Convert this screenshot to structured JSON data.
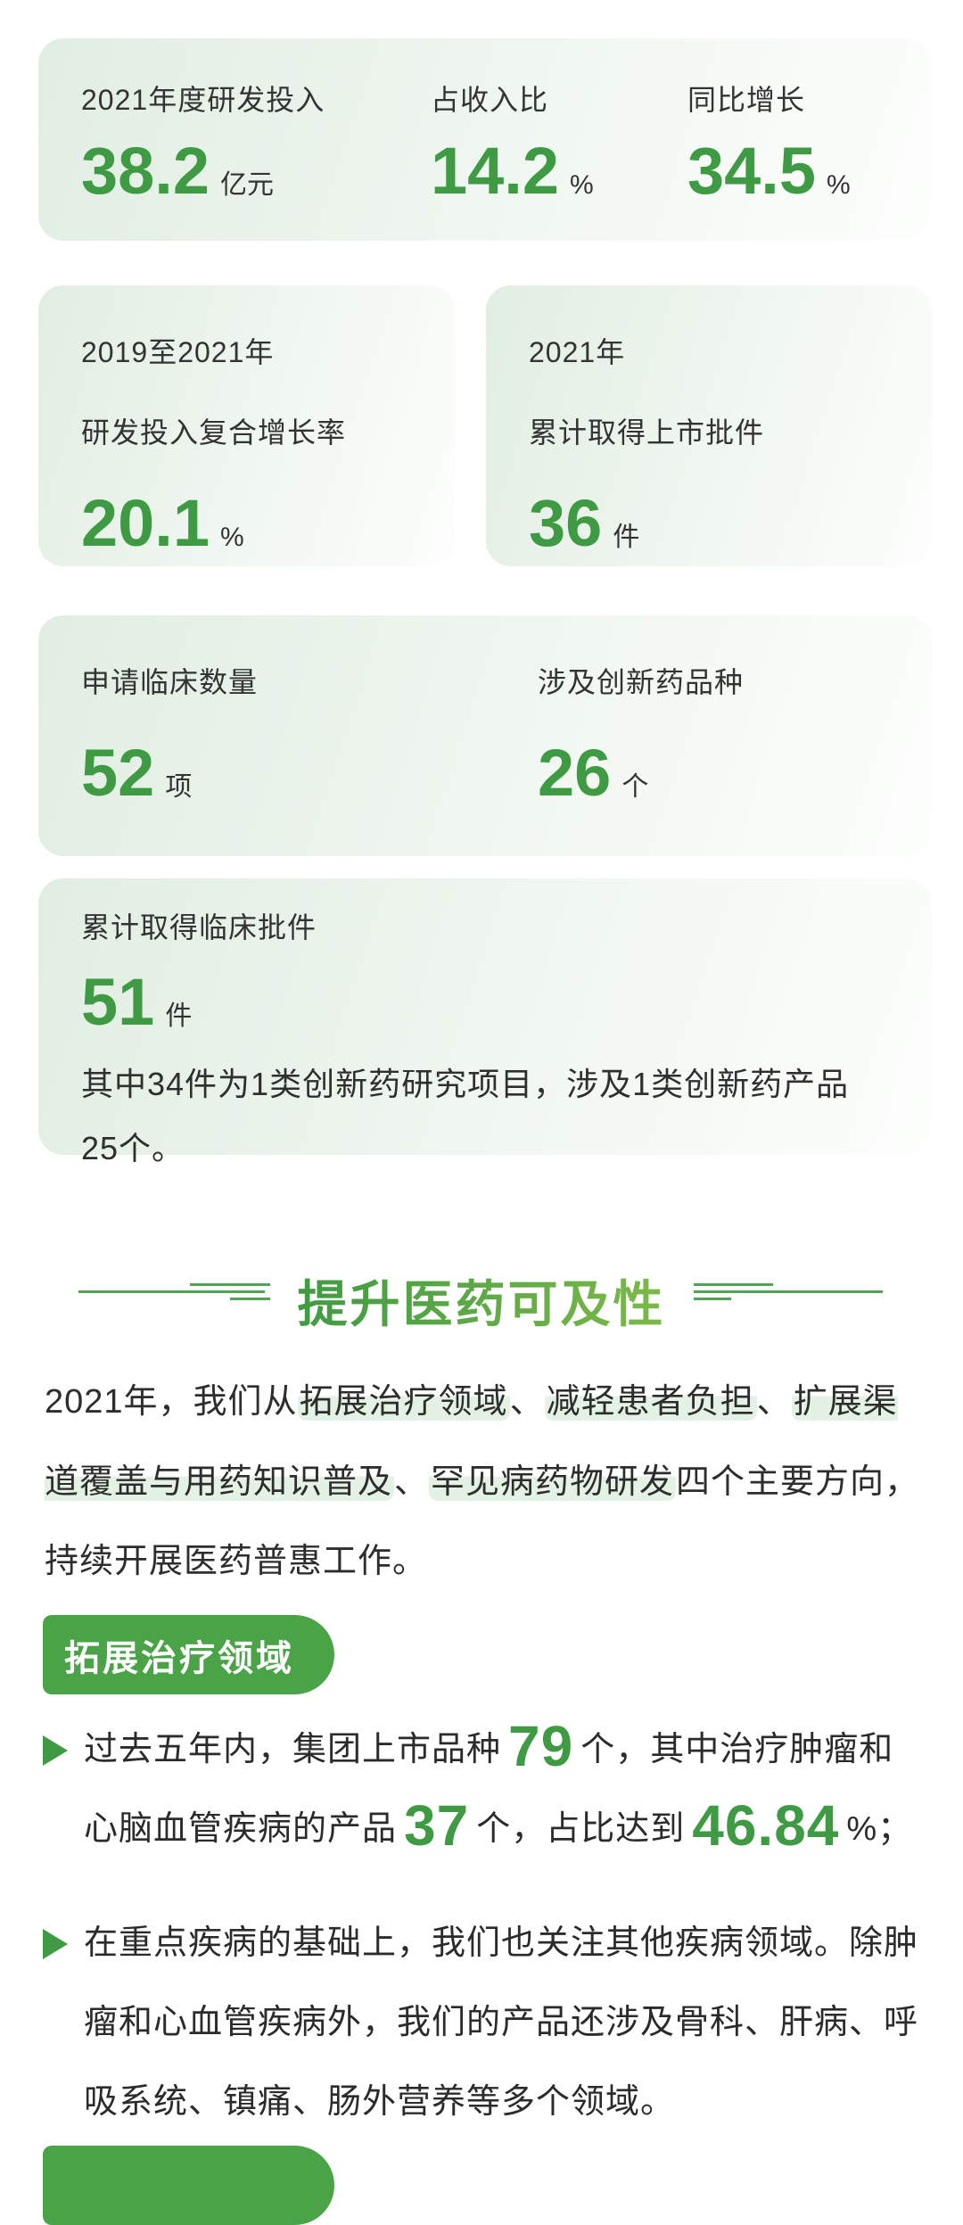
{
  "colors": {
    "accent_green": "#3f9b43",
    "tag_green": "#4aa347",
    "title_gradient_start": "#2f9240",
    "title_gradient_end": "#8fc14c",
    "deco_line_green": "#4fa351",
    "highlight_green": "#e4f1e5",
    "card_gradient_start": "#e1eee3",
    "card_gradient_end": "#fdfefd",
    "text_dark": "#333333"
  },
  "stats_row1": {
    "items": [
      {
        "label": "2021年度研发投入",
        "value": "38.2",
        "unit": "亿元"
      },
      {
        "label": "占收入比",
        "value": "14.2",
        "unit": "%"
      },
      {
        "label": "同比增长",
        "value": "34.5",
        "unit": "%"
      }
    ]
  },
  "stats_row2": {
    "left": {
      "line1": "2019至2021年",
      "line2": "研发投入复合增长率",
      "value": "20.1",
      "unit": "%"
    },
    "right": {
      "line1": "2021年",
      "line2": "累计取得上市批件",
      "value": "36",
      "unit": "件"
    }
  },
  "stats_row3": {
    "items": [
      {
        "label": "申请临床数量",
        "value": "52",
        "unit": "项"
      },
      {
        "label": "涉及创新药品种",
        "value": "26",
        "unit": "个"
      }
    ]
  },
  "stats_card4": {
    "label": "累计取得临床批件",
    "value": "51",
    "unit": "件",
    "note": "其中34件为1类创新药研究项目，涉及1类创新药产品 25个。"
  },
  "section": {
    "title": "提升医药可及性"
  },
  "intro": {
    "segments": [
      {
        "t": "2021年，我们从",
        "k": "text"
      },
      {
        "t": "拓展治疗领域",
        "k": "hl"
      },
      {
        "t": "、",
        "k": "text"
      },
      {
        "t": "减轻患者负担",
        "k": "hl"
      },
      {
        "t": "、",
        "k": "text"
      },
      {
        "t": "扩展渠道覆盖与用药知识普及",
        "k": "hl"
      },
      {
        "t": "、",
        "k": "text"
      },
      {
        "t": "罕见病药物研发",
        "k": "hl"
      },
      {
        "t": "四个主要方向，持续开展医药普惠工作。",
        "k": "text"
      }
    ]
  },
  "tag1": {
    "label": "拓展治疗领域"
  },
  "bullets": [
    {
      "segments": [
        {
          "t": "过去五年内，集团上市品种",
          "k": "text"
        },
        {
          "t": "79",
          "k": "num"
        },
        {
          "t": "个，其中治疗肿瘤和心脑血管疾病的产品",
          "k": "text"
        },
        {
          "t": "37",
          "k": "num"
        },
        {
          "t": "个，占比达到",
          "k": "text"
        },
        {
          "t": "46.84",
          "k": "num"
        },
        {
          "t": "%；",
          "k": "text"
        }
      ]
    },
    {
      "segments": [
        {
          "t": "在重点疾病的基础上，我们也关注其他疾病领域。除肿瘤和心血管疾病外，我们的产品还涉及骨科、肝病、呼吸系统、镇痛、肠外营养等多个领域。",
          "k": "text"
        }
      ]
    }
  ]
}
